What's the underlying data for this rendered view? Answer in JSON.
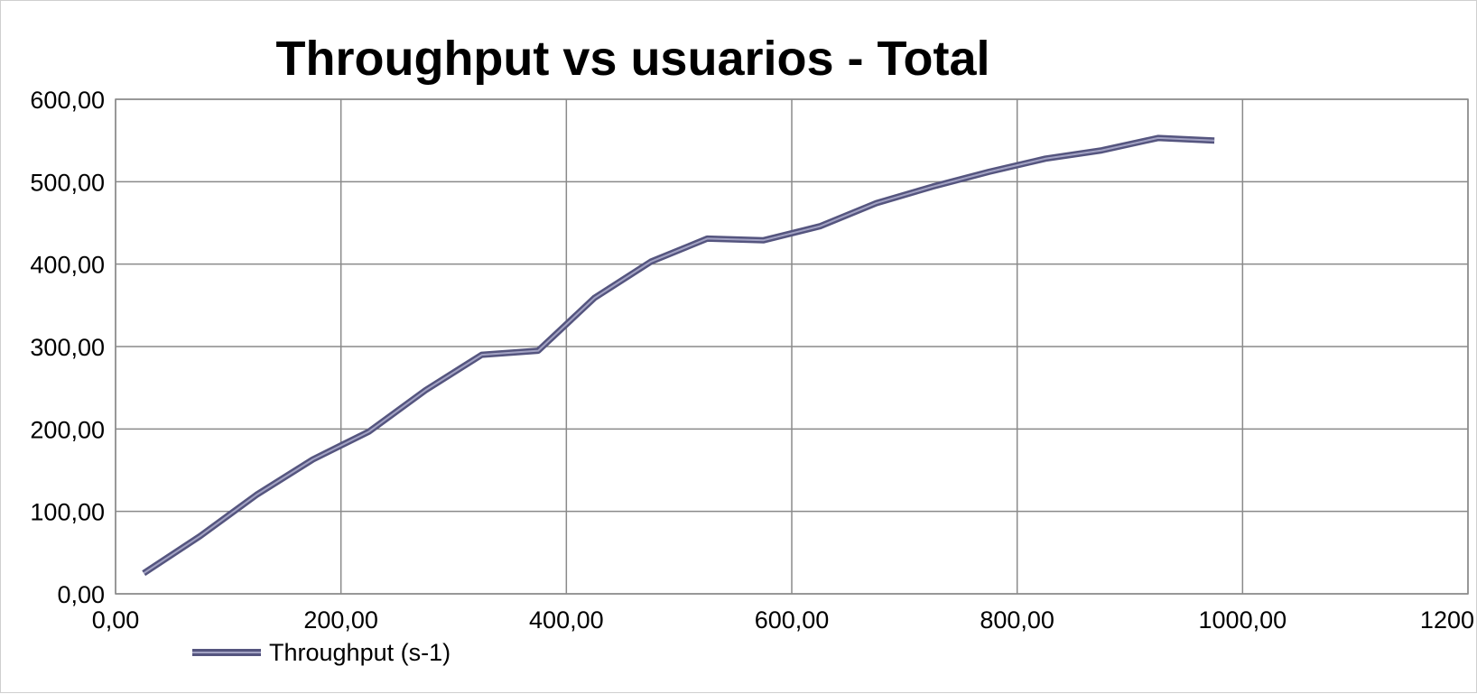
{
  "chart_data": {
    "type": "line",
    "title": "Throughput vs usuarios - Total",
    "xlabel": "",
    "ylabel": "",
    "xlim": [
      0,
      1200
    ],
    "ylim": [
      0,
      600
    ],
    "x_ticks": [
      0,
      200,
      400,
      600,
      800,
      1000,
      1200
    ],
    "x_tick_labels": [
      "0,00",
      "200,00",
      "400,00",
      "600,00",
      "800,00",
      "1000,00",
      "1200"
    ],
    "y_ticks": [
      0,
      100,
      200,
      300,
      400,
      500,
      600
    ],
    "y_tick_labels": [
      "0,00",
      "100,00",
      "200,00",
      "300,00",
      "400,00",
      "500,00",
      "600,00"
    ],
    "grid": true,
    "legend_position": "bottom-left",
    "series": [
      {
        "name": "Throughput  (s-1)",
        "color": "#6b6b96",
        "x": [
          25,
          75,
          125,
          175,
          225,
          275,
          325,
          375,
          425,
          475,
          525,
          575,
          625,
          675,
          725,
          775,
          825,
          875,
          925,
          975
        ],
        "y": [
          25,
          70,
          120,
          163,
          197,
          247,
          290,
          295,
          359,
          403,
          431,
          429,
          446,
          474,
          494,
          512,
          528,
          538,
          553,
          550
        ]
      }
    ]
  }
}
